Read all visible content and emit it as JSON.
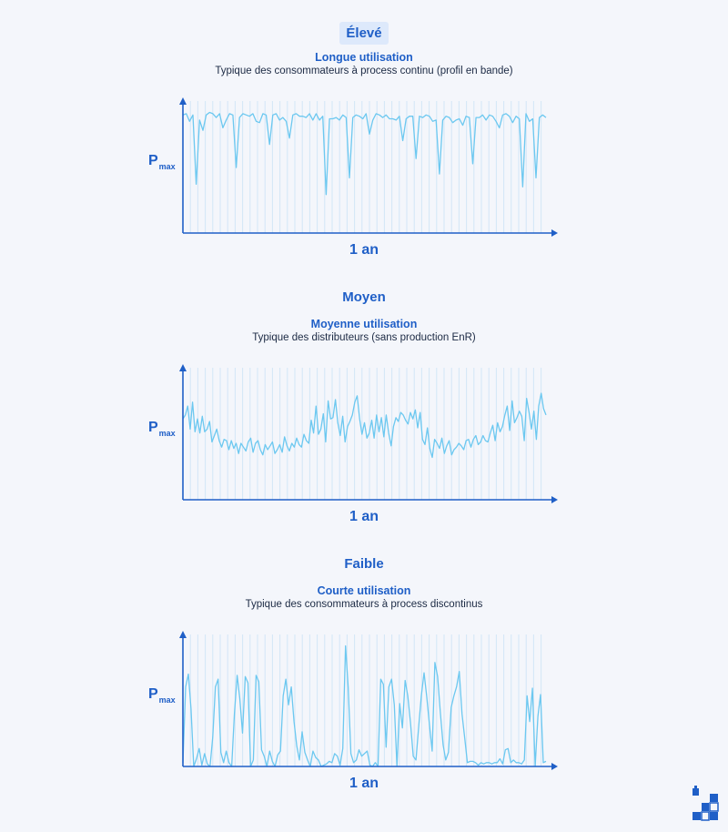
{
  "colors": {
    "accent": "#1f5fc7",
    "line": "#6cc8f0",
    "grid": "#d2e6f7",
    "axis": "#1f5fc7"
  },
  "panels": [
    {
      "level": "Élevé",
      "subtitle": "Longue utilisation",
      "description": "Typique des consommateurs à process continu (profil en bande)",
      "ylabel_main": "P",
      "ylabel_sub": "max",
      "xlabel": "1 an"
    },
    {
      "level": "Moyen",
      "subtitle": "Moyenne utilisation",
      "description": "Typique des distributeurs (sans production EnR)",
      "ylabel_main": "P",
      "ylabel_sub": "max",
      "xlabel": "1 an"
    },
    {
      "level": "Faible",
      "subtitle": "Courte utilisation",
      "description": "Typique des consommateurs à process discontinus",
      "ylabel_main": "P",
      "ylabel_sub": "max",
      "xlabel": "1 an"
    }
  ],
  "chart_data": [
    {
      "type": "line",
      "title": "Élevé",
      "xlabel": "1 an",
      "ylabel": "Pmax",
      "ylim": [
        0,
        1
      ],
      "grid": true,
      "values": [
        0.92,
        0.93,
        0.87,
        0.92,
        0.38,
        0.88,
        0.8,
        0.92,
        0.94,
        0.93,
        0.9,
        0.93,
        0.82,
        0.88,
        0.93,
        0.92,
        0.51,
        0.9,
        0.93,
        0.92,
        0.91,
        0.93,
        0.87,
        0.86,
        0.93,
        0.92,
        0.69,
        0.92,
        0.93,
        0.88,
        0.9,
        0.87,
        0.74,
        0.92,
        0.93,
        0.91,
        0.91,
        0.9,
        0.93,
        0.88,
        0.93,
        0.88,
        0.91,
        0.3,
        0.89,
        0.89,
        0.9,
        0.88,
        0.92,
        0.9,
        0.43,
        0.9,
        0.92,
        0.91,
        0.89,
        0.93,
        0.77,
        0.88,
        0.93,
        0.92,
        0.9,
        0.92,
        0.89,
        0.89,
        0.88,
        0.91,
        0.72,
        0.89,
        0.91,
        0.91,
        0.58,
        0.91,
        0.9,
        0.92,
        0.91,
        0.87,
        0.88,
        0.46,
        0.88,
        0.91,
        0.9,
        0.86,
        0.88,
        0.89,
        0.84,
        0.91,
        0.9,
        0.54,
        0.9,
        0.9,
        0.92,
        0.88,
        0.92,
        0.91,
        0.87,
        0.82,
        0.92,
        0.93,
        0.91,
        0.86,
        0.91,
        0.89,
        0.36,
        0.93,
        0.87,
        0.89,
        0.43,
        0.9,
        0.92,
        0.9
      ],
      "notes": "values as fraction of the axis height; y-axis tick values are not printed"
    },
    {
      "type": "line",
      "title": "Moyen",
      "xlabel": "1 an",
      "ylabel": "Pmax",
      "ylim": [
        0,
        1
      ],
      "grid": true,
      "values": [
        0.63,
        0.66,
        0.73,
        0.55,
        0.76,
        0.53,
        0.63,
        0.52,
        0.65,
        0.53,
        0.55,
        0.61,
        0.45,
        0.5,
        0.55,
        0.46,
        0.41,
        0.47,
        0.46,
        0.39,
        0.46,
        0.4,
        0.44,
        0.36,
        0.44,
        0.41,
        0.38,
        0.45,
        0.48,
        0.37,
        0.44,
        0.46,
        0.39,
        0.35,
        0.43,
        0.39,
        0.42,
        0.45,
        0.36,
        0.39,
        0.43,
        0.37,
        0.49,
        0.42,
        0.38,
        0.44,
        0.41,
        0.48,
        0.43,
        0.41,
        0.51,
        0.46,
        0.44,
        0.62,
        0.52,
        0.73,
        0.51,
        0.55,
        0.67,
        0.45,
        0.77,
        0.63,
        0.64,
        0.78,
        0.6,
        0.5,
        0.65,
        0.45,
        0.57,
        0.61,
        0.66,
        0.76,
        0.81,
        0.63,
        0.51,
        0.6,
        0.48,
        0.52,
        0.62,
        0.48,
        0.66,
        0.53,
        0.64,
        0.49,
        0.66,
        0.52,
        0.42,
        0.57,
        0.64,
        0.61,
        0.68,
        0.66,
        0.62,
        0.59,
        0.68,
        0.63,
        0.7,
        0.56,
        0.68,
        0.47,
        0.43,
        0.56,
        0.4,
        0.33,
        0.47,
        0.44,
        0.4,
        0.48,
        0.36,
        0.42,
        0.46,
        0.35,
        0.39,
        0.41,
        0.44,
        0.42,
        0.39,
        0.46,
        0.47,
        0.41,
        0.47,
        0.5,
        0.43,
        0.45,
        0.5,
        0.46,
        0.45,
        0.52,
        0.58,
        0.46,
        0.6,
        0.53,
        0.57,
        0.66,
        0.73,
        0.54,
        0.77,
        0.6,
        0.64,
        0.69,
        0.65,
        0.46,
        0.79,
        0.68,
        0.55,
        0.69,
        0.47,
        0.73,
        0.83,
        0.71,
        0.66
      ],
      "notes": "values as fraction of the axis height; y-axis tick values are not printed"
    },
    {
      "type": "line",
      "title": "Faible",
      "xlabel": "1 an",
      "ylabel": "Pmax",
      "ylim": [
        0,
        1
      ],
      "grid": true,
      "values": [
        0.03,
        0.62,
        0.72,
        0.45,
        0.0,
        0.06,
        0.14,
        0.01,
        0.1,
        0.02,
        0.0,
        0.23,
        0.62,
        0.68,
        0.11,
        0.03,
        0.12,
        0.03,
        0.0,
        0.41,
        0.71,
        0.53,
        0.26,
        0.7,
        0.65,
        0.0,
        0.05,
        0.71,
        0.66,
        0.13,
        0.08,
        0.0,
        0.12,
        0.04,
        0.0,
        0.09,
        0.12,
        0.55,
        0.68,
        0.48,
        0.62,
        0.35,
        0.16,
        0.05,
        0.27,
        0.11,
        0.05,
        0.0,
        0.12,
        0.07,
        0.05,
        0.0,
        0.01,
        0.02,
        0.04,
        0.03,
        0.1,
        0.08,
        0.01,
        0.14,
        0.94,
        0.62,
        0.1,
        0.03,
        0.05,
        0.13,
        0.08,
        0.1,
        0.12,
        0.01,
        0.0,
        0.03,
        0.0,
        0.68,
        0.64,
        0.15,
        0.62,
        0.68,
        0.48,
        0.0,
        0.49,
        0.3,
        0.67,
        0.55,
        0.34,
        0.08,
        0.05,
        0.31,
        0.55,
        0.73,
        0.54,
        0.32,
        0.12,
        0.81,
        0.7,
        0.42,
        0.17,
        0.05,
        0.11,
        0.46,
        0.55,
        0.62,
        0.74,
        0.41,
        0.22,
        0.03,
        0.04,
        0.04,
        0.03,
        0.01,
        0.03,
        0.02,
        0.03,
        0.03,
        0.02,
        0.03,
        0.03,
        0.06,
        0.02,
        0.13,
        0.14,
        0.03,
        0.05,
        0.03,
        0.03,
        0.02,
        0.05,
        0.55,
        0.35,
        0.61,
        0.0,
        0.39,
        0.56,
        0.03,
        0.04
      ],
      "notes": "values as fraction of the axis height; y-axis tick values are not printed"
    }
  ]
}
